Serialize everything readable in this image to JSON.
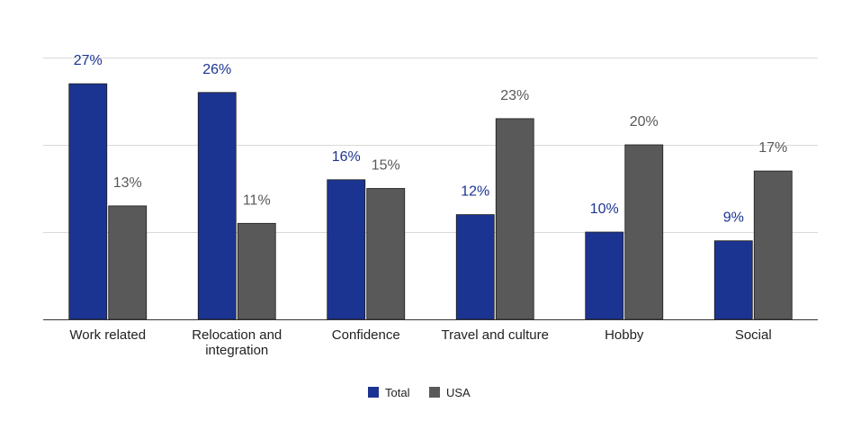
{
  "chart_data": {
    "type": "bar",
    "title": "",
    "xlabel": "",
    "ylabel": "",
    "ylim": [
      0,
      30
    ],
    "gridlines": [
      0,
      10,
      20,
      30
    ],
    "categories": [
      [
        "Work related"
      ],
      [
        "Relocation and",
        "integration"
      ],
      [
        "Confidence"
      ],
      [
        "Travel and culture"
      ],
      [
        "Hobby"
      ],
      [
        "Social"
      ]
    ],
    "series": [
      {
        "name": "Total",
        "color": "#1c3491",
        "values": [
          27,
          26,
          16,
          12,
          10,
          9
        ],
        "labels": [
          "27%",
          "26%",
          "16%",
          "12%",
          "10%",
          "9%"
        ]
      },
      {
        "name": "USA",
        "color": "#595959",
        "values": [
          13,
          11,
          15,
          23,
          20,
          17
        ],
        "labels": [
          "13%",
          "11%",
          "15%",
          "23%",
          "20%",
          "17%"
        ]
      }
    ],
    "legend": "bottom-center"
  }
}
